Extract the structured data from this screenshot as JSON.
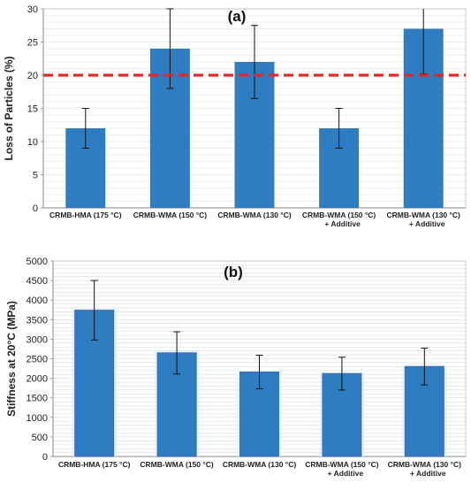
{
  "chart_data": [
    {
      "type": "bar",
      "title": "(a)",
      "ylabel": "Loss of Particles (%)",
      "xlabel": "",
      "ylim": [
        0,
        30
      ],
      "yticks": [
        0,
        5,
        10,
        15,
        20,
        25,
        30
      ],
      "grid": true,
      "categories": [
        [
          "CRMB-HMA (175 °C)"
        ],
        [
          "CRMB-WMA (150 °C)"
        ],
        [
          "CRMB-WMA (130 °C)"
        ],
        [
          "CRMB-WMA (150 °C)",
          "+ Additive"
        ],
        [
          "CRMB-WMA (130 °C)",
          "+ Additive"
        ]
      ],
      "values": [
        12,
        24,
        22,
        12,
        27
      ],
      "errors": [
        3,
        6,
        5.5,
        3,
        6.8
      ],
      "threshold": 20,
      "colors": {
        "bar": "#2e7cc1",
        "threshold": "#e8262a",
        "grid": "#d9d9d9"
      }
    },
    {
      "type": "bar",
      "title": "(b)",
      "ylabel": "Stiffness at 20°C (MPa)",
      "xlabel": "",
      "ylim": [
        0,
        5000
      ],
      "yticks": [
        0,
        500,
        1000,
        1500,
        2000,
        2500,
        3000,
        3500,
        4000,
        4500,
        5000
      ],
      "grid": true,
      "categories": [
        [
          "CRMB-HMA (175 °C)"
        ],
        [
          "CRMB-WMA (150 °C)"
        ],
        [
          "CRMB-WMA (130 °C)"
        ],
        [
          "CRMB-WMA (150 °C)",
          "+ Additive"
        ],
        [
          "CRMB-WMA (130 °C)",
          "+ Additive"
        ]
      ],
      "values": [
        3740,
        2650,
        2160,
        2120,
        2300
      ],
      "errors": [
        760,
        540,
        430,
        420,
        470
      ],
      "colors": {
        "bar": "#2e7cc1",
        "grid": "#d9d9d9"
      }
    }
  ]
}
